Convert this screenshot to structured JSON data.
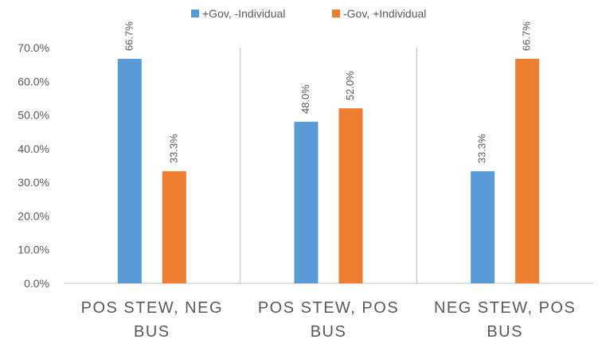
{
  "chart_data": {
    "type": "bar",
    "categories": [
      [
        "POS STEW, NEG",
        "BUS"
      ],
      [
        "POS STEW, POS",
        "BUS"
      ],
      [
        "NEG STEW, POS",
        "BUS"
      ]
    ],
    "series": [
      {
        "name": "+Gov, -Individual",
        "values": [
          66.7,
          48.0,
          33.3
        ],
        "labels": [
          "66.7%",
          "48.0%",
          "33.3%"
        ],
        "color": "#5B9BD5"
      },
      {
        "name": "-Gov, +Individual",
        "values": [
          33.3,
          52.0,
          66.7
        ],
        "labels": [
          "33.3%",
          "52.0%",
          "66.7%"
        ],
        "color": "#ED7D31"
      }
    ],
    "ylim": [
      0,
      70
    ],
    "yticks": [
      "0.0%",
      "10.0%",
      "20.0%",
      "30.0%",
      "40.0%",
      "50.0%",
      "60.0%",
      "70.0%"
    ],
    "legend_position": "top",
    "grid": false,
    "category_separators": true,
    "axis_color": "#BFBFBF",
    "text_color": "#595959"
  }
}
